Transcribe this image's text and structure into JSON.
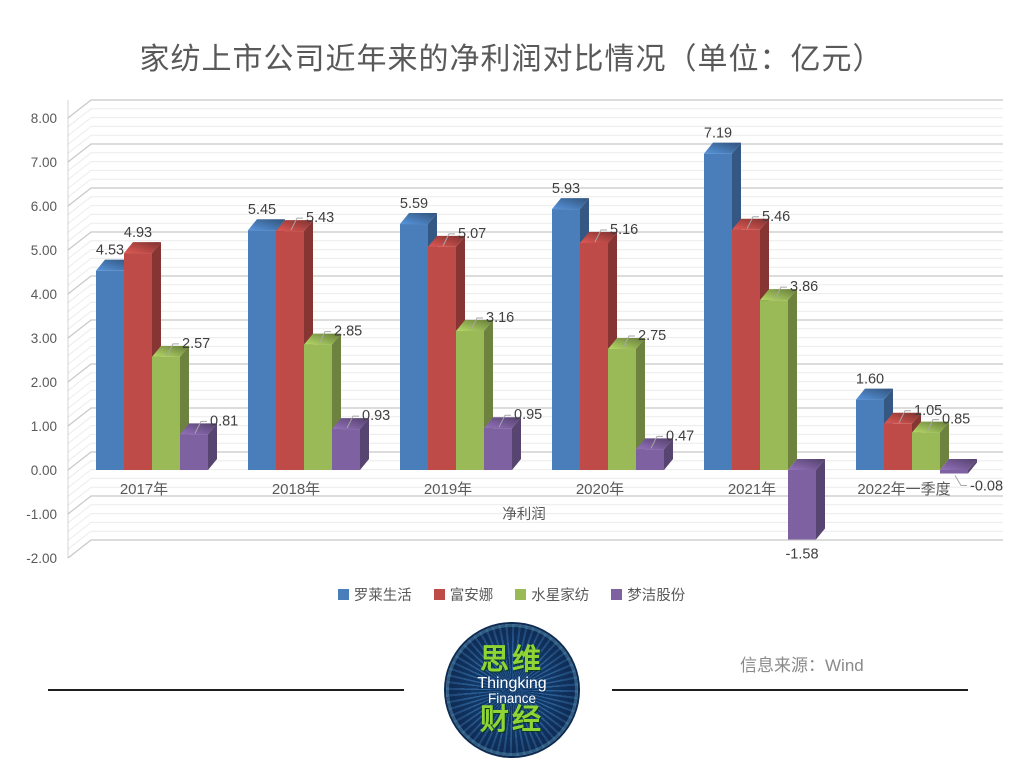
{
  "chart_data": {
    "type": "bar",
    "style": "3d-clustered",
    "title": "家纺上市公司近年来的净利润对比情况（单位：亿元）",
    "categories": [
      "2017年",
      "2018年",
      "2019年",
      "2020年",
      "2021年",
      "2022年一季度"
    ],
    "series": [
      {
        "name": "罗莱生活",
        "color": "#4a7ebb",
        "values": [
          4.53,
          5.45,
          5.59,
          5.93,
          7.19,
          1.6
        ]
      },
      {
        "name": "富安娜",
        "color": "#bf4b48",
        "values": [
          4.93,
          5.43,
          5.07,
          5.16,
          5.46,
          1.05
        ]
      },
      {
        "name": "水星家纺",
        "color": "#9aba58",
        "values": [
          2.57,
          2.85,
          3.16,
          2.75,
          3.86,
          0.85
        ]
      },
      {
        "name": "梦洁股份",
        "color": "#7d61a0",
        "values": [
          0.81,
          0.93,
          0.95,
          0.47,
          -1.58,
          -0.08
        ]
      }
    ],
    "xlabel": "净利润",
    "ylabel": "",
    "ylim": [
      -2,
      8
    ],
    "y_major": 1,
    "y_minor": 0.2,
    "y_ticks": [
      "-2.00",
      "-1.00",
      "0.00",
      "1.00",
      "2.00",
      "3.00",
      "4.00",
      "5.00",
      "6.00",
      "7.00",
      "8.00"
    ],
    "grid": true,
    "legend_position": "bottom"
  },
  "footer": {
    "source": "信息来源：Wind",
    "logo": {
      "line1_cn": "思维",
      "line2_en": "Thingking",
      "line3_en": "Finance",
      "line4_cn": "财经"
    }
  }
}
